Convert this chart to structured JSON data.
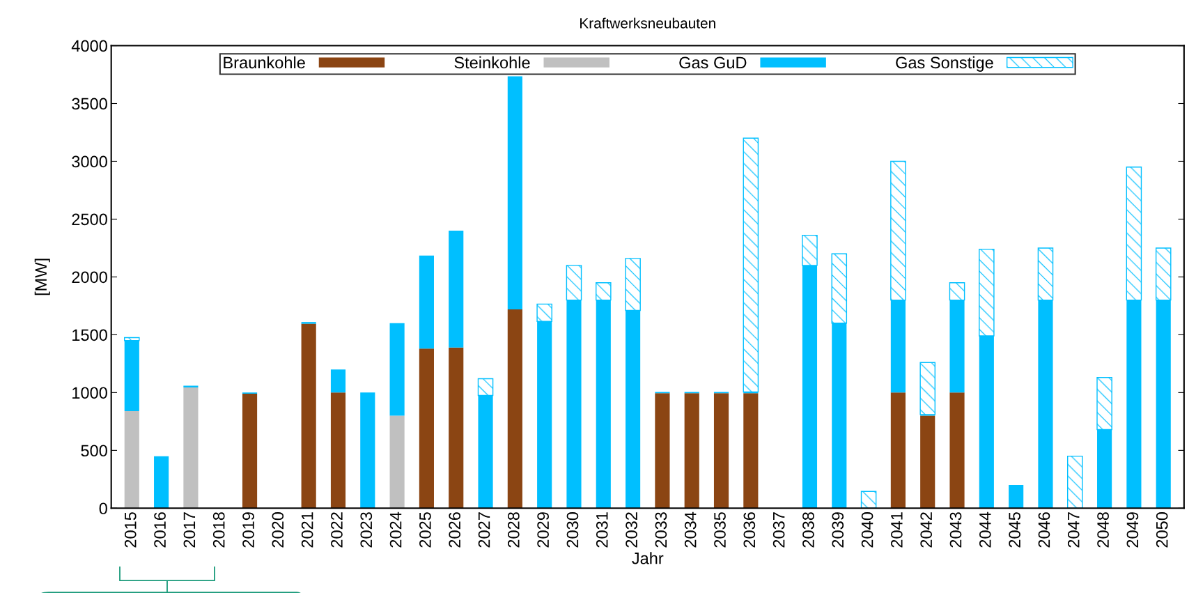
{
  "chart_data": {
    "type": "bar",
    "title": "Kraftwerksneubauten",
    "xlabel": "Jahr",
    "ylabel": "[MW]",
    "stacked": true,
    "categories": [
      "2015",
      "2016",
      "2017",
      "2018",
      "2019",
      "2020",
      "2021",
      "2022",
      "2023",
      "2024",
      "2025",
      "2026",
      "2027",
      "2028",
      "2029",
      "2030",
      "2031",
      "2032",
      "2033",
      "2034",
      "2035",
      "2036",
      "2037",
      "2038",
      "2039",
      "2040",
      "2041",
      "2042",
      "2043",
      "2044",
      "2045",
      "2046",
      "2047",
      "2048",
      "2049",
      "2050"
    ],
    "series": [
      {
        "name": "Braunkohle",
        "color": "#8b4513",
        "values": [
          null,
          null,
          null,
          null,
          990,
          null,
          1595,
          1000,
          null,
          null,
          1380,
          1390,
          null,
          1720,
          null,
          null,
          null,
          null,
          995,
          995,
          995,
          995,
          null,
          null,
          null,
          null,
          1000,
          800,
          1000,
          null,
          null,
          null,
          null,
          null,
          null,
          null
        ]
      },
      {
        "name": "Steinkohle",
        "color": "#c0c0c0",
        "values": [
          840,
          null,
          1045,
          null,
          null,
          null,
          null,
          null,
          null,
          800,
          null,
          null,
          null,
          null,
          null,
          null,
          null,
          null,
          null,
          null,
          null,
          null,
          null,
          null,
          null,
          null,
          null,
          null,
          null,
          null,
          null,
          null,
          null,
          null,
          null,
          null
        ]
      },
      {
        "name": "Gas GuD",
        "color": "#00bfff",
        "values": [
          610,
          450,
          15,
          null,
          10,
          null,
          15,
          200,
          1000,
          800,
          805,
          1010,
          975,
          2015,
          1615,
          1800,
          1800,
          1710,
          10,
          10,
          10,
          10,
          null,
          2100,
          1600,
          null,
          800,
          10,
          800,
          1490,
          200,
          1800,
          null,
          680,
          1800,
          1800
        ]
      },
      {
        "name": "Gas Sonstige",
        "color": "#00bfff",
        "values": [
          25,
          null,
          null,
          null,
          null,
          null,
          null,
          null,
          null,
          null,
          null,
          null,
          145,
          null,
          150,
          300,
          150,
          450,
          null,
          null,
          null,
          2195,
          null,
          260,
          600,
          145,
          1200,
          450,
          150,
          750,
          null,
          450,
          450,
          450,
          1150,
          450
        ]
      }
    ],
    "ylim": [
      0,
      4000
    ],
    "yticks": [
      0,
      500,
      1000,
      1500,
      2000,
      2500,
      3000,
      3500,
      4000
    ],
    "grid": false,
    "legend": "top"
  }
}
